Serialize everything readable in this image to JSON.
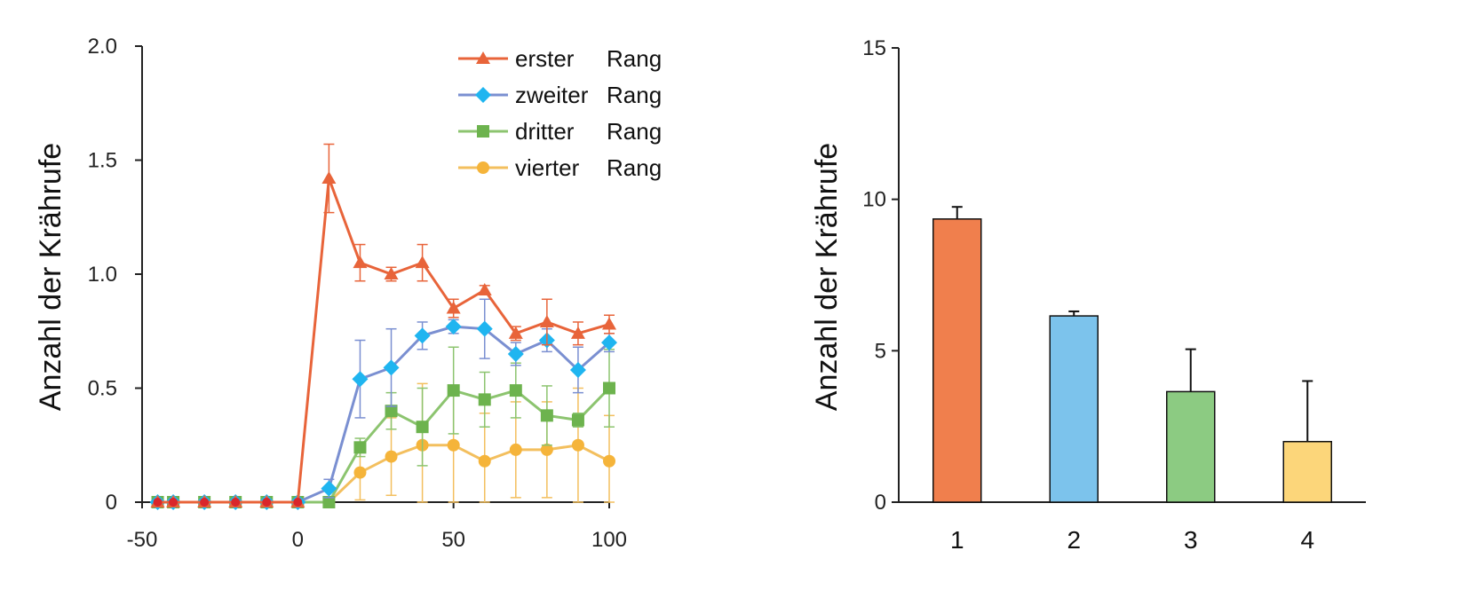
{
  "chart_data": [
    {
      "type": "line",
      "title": "",
      "xlabel": "",
      "ylabel": "Anzahl der Krährufe",
      "xlim": [
        -50,
        100
      ],
      "ylim": [
        0,
        2.0
      ],
      "x_ticks": [
        "-50",
        "0",
        "50",
        "100"
      ],
      "y_ticks": [
        "0",
        "0.5",
        "1.0",
        "1.5",
        "2.0"
      ],
      "legend_position": "top-right",
      "x": [
        -45,
        -40,
        -30,
        -20,
        -10,
        0,
        10,
        20,
        30,
        40,
        50,
        60,
        70,
        80,
        90,
        100
      ],
      "series": [
        {
          "name": "erster",
          "rank_label": "Rang",
          "color": "#e8643a",
          "marker": "triangle",
          "values": [
            0,
            0,
            0,
            0,
            0,
            0,
            1.42,
            1.05,
            1.0,
            1.05,
            0.85,
            0.93,
            0.74,
            0.79,
            0.74,
            0.78
          ],
          "errors": [
            0,
            0,
            0,
            0,
            0,
            0,
            0.15,
            0.08,
            0.03,
            0.08,
            0.04,
            0.02,
            0.03,
            0.1,
            0.05,
            0.04
          ]
        },
        {
          "name": "zweiter",
          "rank_label": "Rang",
          "color": "#1fb5f0",
          "line_color": "#7a8fd1",
          "marker": "diamond",
          "values": [
            0,
            0,
            0,
            0,
            0,
            0,
            0.06,
            0.54,
            0.59,
            0.73,
            0.77,
            0.76,
            0.65,
            0.71,
            0.58,
            0.7
          ],
          "errors": [
            0,
            0,
            0,
            0,
            0,
            0,
            0.04,
            0.17,
            0.17,
            0.06,
            0.03,
            0.13,
            0.05,
            0.05,
            0.1,
            0.04
          ]
        },
        {
          "name": "dritter",
          "rank_label": "Rang",
          "color": "#6db34e",
          "line_color": "#8cc46f",
          "marker": "square",
          "values": [
            0,
            0,
            0,
            0,
            0,
            0,
            0,
            0.24,
            0.4,
            0.33,
            0.49,
            0.45,
            0.49,
            0.38,
            0.36,
            0.5
          ],
          "errors": [
            0,
            0,
            0,
            0,
            0,
            0,
            0,
            0.04,
            0.08,
            0.17,
            0.19,
            0.12,
            0.12,
            0.13,
            0.03,
            0.17
          ]
        },
        {
          "name": "vierter",
          "rank_label": "Rang",
          "color": "#f5b43a",
          "line_color": "#f3bf5e",
          "marker": "circle",
          "values": [
            0,
            0,
            0,
            0,
            0,
            0,
            0,
            0.13,
            0.2,
            0.25,
            0.25,
            0.18,
            0.23,
            0.23,
            0.25,
            0.18
          ],
          "errors": [
            0,
            0,
            0,
            0,
            0,
            0,
            0,
            0.12,
            0.17,
            0.27,
            0.26,
            0.21,
            0.21,
            0.21,
            0.25,
            0.2
          ]
        }
      ]
    },
    {
      "type": "bar",
      "title": "",
      "xlabel": "",
      "ylabel": "Anzahl der Krährufe",
      "ylim": [
        0,
        15
      ],
      "y_ticks": [
        "0",
        "5",
        "10",
        "15"
      ],
      "categories": [
        "1",
        "2",
        "3",
        "4"
      ],
      "values": [
        9.35,
        6.15,
        3.65,
        2.0
      ],
      "errors": [
        0.4,
        0.15,
        1.4,
        2.0
      ],
      "colors": [
        "#f07f4d",
        "#7cc3ec",
        "#8ccb82",
        "#fcd67a"
      ]
    }
  ]
}
